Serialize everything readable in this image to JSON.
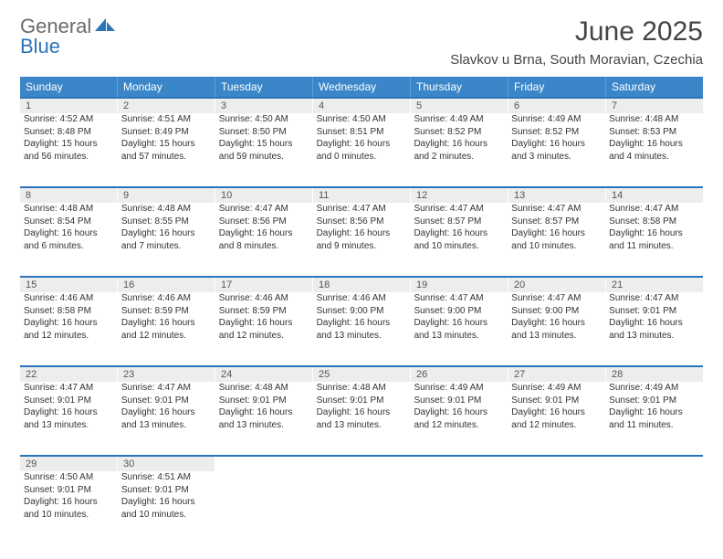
{
  "brand": {
    "part1": "General",
    "part2": "Blue"
  },
  "title": "June 2025",
  "location": "Slavkov u Brna, South Moravian, Czechia",
  "colors": {
    "header_bg": "#3b86c8",
    "rule": "#2a74b8",
    "daynum_bg": "#ededed",
    "text": "#333333"
  },
  "dow": [
    "Sunday",
    "Monday",
    "Tuesday",
    "Wednesday",
    "Thursday",
    "Friday",
    "Saturday"
  ],
  "weeks": [
    [
      {
        "n": "1",
        "sr": "4:52 AM",
        "ss": "8:48 PM",
        "dh": "15",
        "dm": "56"
      },
      {
        "n": "2",
        "sr": "4:51 AM",
        "ss": "8:49 PM",
        "dh": "15",
        "dm": "57"
      },
      {
        "n": "3",
        "sr": "4:50 AM",
        "ss": "8:50 PM",
        "dh": "15",
        "dm": "59"
      },
      {
        "n": "4",
        "sr": "4:50 AM",
        "ss": "8:51 PM",
        "dh": "16",
        "dm": "0"
      },
      {
        "n": "5",
        "sr": "4:49 AM",
        "ss": "8:52 PM",
        "dh": "16",
        "dm": "2"
      },
      {
        "n": "6",
        "sr": "4:49 AM",
        "ss": "8:52 PM",
        "dh": "16",
        "dm": "3"
      },
      {
        "n": "7",
        "sr": "4:48 AM",
        "ss": "8:53 PM",
        "dh": "16",
        "dm": "4"
      }
    ],
    [
      {
        "n": "8",
        "sr": "4:48 AM",
        "ss": "8:54 PM",
        "dh": "16",
        "dm": "6"
      },
      {
        "n": "9",
        "sr": "4:48 AM",
        "ss": "8:55 PM",
        "dh": "16",
        "dm": "7"
      },
      {
        "n": "10",
        "sr": "4:47 AM",
        "ss": "8:56 PM",
        "dh": "16",
        "dm": "8"
      },
      {
        "n": "11",
        "sr": "4:47 AM",
        "ss": "8:56 PM",
        "dh": "16",
        "dm": "9"
      },
      {
        "n": "12",
        "sr": "4:47 AM",
        "ss": "8:57 PM",
        "dh": "16",
        "dm": "10"
      },
      {
        "n": "13",
        "sr": "4:47 AM",
        "ss": "8:57 PM",
        "dh": "16",
        "dm": "10"
      },
      {
        "n": "14",
        "sr": "4:47 AM",
        "ss": "8:58 PM",
        "dh": "16",
        "dm": "11"
      }
    ],
    [
      {
        "n": "15",
        "sr": "4:46 AM",
        "ss": "8:58 PM",
        "dh": "16",
        "dm": "12"
      },
      {
        "n": "16",
        "sr": "4:46 AM",
        "ss": "8:59 PM",
        "dh": "16",
        "dm": "12"
      },
      {
        "n": "17",
        "sr": "4:46 AM",
        "ss": "8:59 PM",
        "dh": "16",
        "dm": "12"
      },
      {
        "n": "18",
        "sr": "4:46 AM",
        "ss": "9:00 PM",
        "dh": "16",
        "dm": "13"
      },
      {
        "n": "19",
        "sr": "4:47 AM",
        "ss": "9:00 PM",
        "dh": "16",
        "dm": "13"
      },
      {
        "n": "20",
        "sr": "4:47 AM",
        "ss": "9:00 PM",
        "dh": "16",
        "dm": "13"
      },
      {
        "n": "21",
        "sr": "4:47 AM",
        "ss": "9:01 PM",
        "dh": "16",
        "dm": "13"
      }
    ],
    [
      {
        "n": "22",
        "sr": "4:47 AM",
        "ss": "9:01 PM",
        "dh": "16",
        "dm": "13"
      },
      {
        "n": "23",
        "sr": "4:47 AM",
        "ss": "9:01 PM",
        "dh": "16",
        "dm": "13"
      },
      {
        "n": "24",
        "sr": "4:48 AM",
        "ss": "9:01 PM",
        "dh": "16",
        "dm": "13"
      },
      {
        "n": "25",
        "sr": "4:48 AM",
        "ss": "9:01 PM",
        "dh": "16",
        "dm": "13"
      },
      {
        "n": "26",
        "sr": "4:49 AM",
        "ss": "9:01 PM",
        "dh": "16",
        "dm": "12"
      },
      {
        "n": "27",
        "sr": "4:49 AM",
        "ss": "9:01 PM",
        "dh": "16",
        "dm": "12"
      },
      {
        "n": "28",
        "sr": "4:49 AM",
        "ss": "9:01 PM",
        "dh": "16",
        "dm": "11"
      }
    ],
    [
      {
        "n": "29",
        "sr": "4:50 AM",
        "ss": "9:01 PM",
        "dh": "16",
        "dm": "10"
      },
      {
        "n": "30",
        "sr": "4:51 AM",
        "ss": "9:01 PM",
        "dh": "16",
        "dm": "10"
      },
      null,
      null,
      null,
      null,
      null
    ]
  ],
  "labels": {
    "sunrise": "Sunrise:",
    "sunset": "Sunset:",
    "daylight": "Daylight:",
    "hours": "hours",
    "and": "and",
    "minutes": "minutes."
  }
}
